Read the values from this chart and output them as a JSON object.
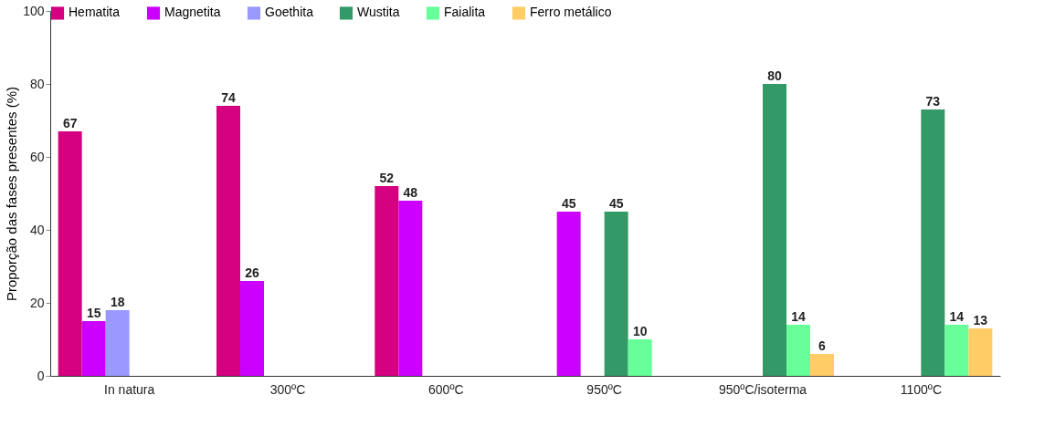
{
  "chart_data": {
    "type": "bar",
    "ylabel": "Proporção das fases presentes (%)",
    "categories": [
      "In natura",
      "300ºC",
      "600ºC",
      "950ºC",
      "950ºC/isoterma",
      "1100ºC"
    ],
    "series": [
      {
        "name": "Hematita",
        "color": "#d4007f",
        "values": [
          67,
          74,
          52,
          null,
          null,
          null
        ]
      },
      {
        "name": "Magnetita",
        "color": "#cc00ff",
        "values": [
          15,
          26,
          48,
          45,
          null,
          null
        ]
      },
      {
        "name": "Goethita",
        "color": "#9999ff",
        "values": [
          18,
          null,
          null,
          null,
          null,
          null
        ]
      },
      {
        "name": "Wustita",
        "color": "#339966",
        "values": [
          null,
          null,
          null,
          45,
          80,
          73
        ]
      },
      {
        "name": "Faialita",
        "color": "#66ff99",
        "values": [
          null,
          null,
          null,
          10,
          14,
          14
        ]
      },
      {
        "name": "Ferro metálico",
        "color": "#ffcc66",
        "values": [
          null,
          null,
          null,
          null,
          6,
          13
        ]
      }
    ],
    "ylim": [
      0,
      100
    ],
    "yticks": [
      0,
      20,
      40,
      60,
      80,
      100
    ],
    "grid": false,
    "legend": "top",
    "data_labels": true
  }
}
